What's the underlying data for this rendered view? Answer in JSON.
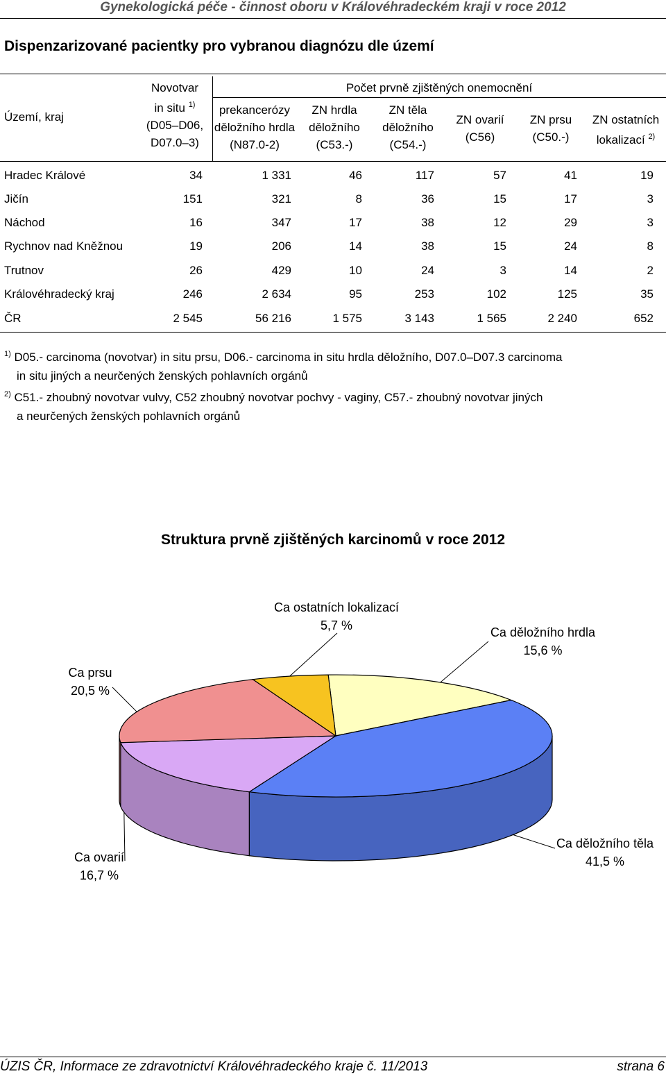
{
  "header": {
    "running_title": "Gynekologická péče - činnost oboru v Královéhradeckém kraji v roce 2012"
  },
  "table_title": "Dispenzarizované pacientky pro vybranou diagnózu dle území",
  "table": {
    "col_territory": "Území, kraj",
    "col_novotvar": {
      "line1": "Novotvar",
      "line2": "in situ",
      "sup": "1)",
      "line3": "(D05–D06,",
      "line4": "D07.0–3)"
    },
    "group_header": "Počet prvně zjištěných onemocnění",
    "col_prekancerozy": {
      "line1": "prekancerózy",
      "line2": "děložního hrdla",
      "line3": "(N87.0-2)"
    },
    "col_hrdla": {
      "line1": "ZN hrdla",
      "line2": "děložního",
      "line3": "(C53.-)"
    },
    "col_tela": {
      "line1": "ZN těla",
      "line2": "děložního",
      "line3": "(C54.-)"
    },
    "col_ovarii": {
      "line1": "ZN ovarií",
      "line2": "(C56)"
    },
    "col_prsu": {
      "line1": "ZN prsu",
      "line2": "(C50.-)"
    },
    "col_ostatni": {
      "line1": "ZN ostatních",
      "line2": "lokalizací",
      "sup": "2)"
    },
    "rows": [
      {
        "name": "Hradec Králové",
        "values": [
          "34",
          "1 331",
          "46",
          "117",
          "57",
          "41",
          "19"
        ]
      },
      {
        "name": "Jičín",
        "values": [
          "151",
          "321",
          "8",
          "36",
          "15",
          "17",
          "3"
        ]
      },
      {
        "name": "Náchod",
        "values": [
          "16",
          "347",
          "17",
          "38",
          "12",
          "29",
          "3"
        ]
      },
      {
        "name": "Rychnov nad Kněžnou",
        "values": [
          "19",
          "206",
          "14",
          "38",
          "15",
          "24",
          "8"
        ]
      },
      {
        "name": "Trutnov",
        "values": [
          "26",
          "429",
          "10",
          "24",
          "3",
          "14",
          "2"
        ]
      },
      {
        "name": "Královéhradecký kraj",
        "values": [
          "246",
          "2 634",
          "95",
          "253",
          "102",
          "125",
          "35"
        ]
      },
      {
        "name": "ČR",
        "values": [
          "2 545",
          "56 216",
          "1 575",
          "3 143",
          "1 565",
          "2 240",
          "652"
        ]
      }
    ]
  },
  "notes": {
    "n1_mark": "1)",
    "n1_line1": "D05.- carcinoma (novotvar) in situ prsu, D06.- carcinoma in situ hrdla děložního, D07.0–D07.3 carcinoma",
    "n1_line2": "in situ jiných a neurčených ženských pohlavních orgánů",
    "n2_mark": "2)",
    "n2_line1": "C51.- zhoubný novotvar vulvy, C52 zhoubný novotvar pochvy - vaginy, C57.- zhoubný novotvar jiných",
    "n2_line2": "a neurčených ženských pohlavních orgánů"
  },
  "chart_data": {
    "type": "pie",
    "title": "Struktura prvně zjištěných karcinomů v roce 2012",
    "slices": [
      {
        "label": "Ca děložního hrdla",
        "value": 15.6,
        "value_text": "15,6 %",
        "color": "#ffffc0"
      },
      {
        "label": "Ca děložního těla",
        "value": 41.5,
        "value_text": "41,5 %",
        "color": "#5b80f5"
      },
      {
        "label": "Ca ovarií",
        "value": 16.7,
        "value_text": "16,7 %",
        "color": "#d9a8f5"
      },
      {
        "label": "Ca prsu",
        "value": 20.5,
        "value_text": "20,5 %",
        "color": "#f09090"
      },
      {
        "label": "Ca ostatních lokalizací",
        "value": 5.7,
        "value_text": "5,7 %",
        "color": "#f7c320"
      }
    ]
  },
  "footer": {
    "left": "ÚZIS ČR, Informace ze zdravotnictví Královéhradeckého kraje č. 11/2013",
    "right": "strana 6"
  }
}
